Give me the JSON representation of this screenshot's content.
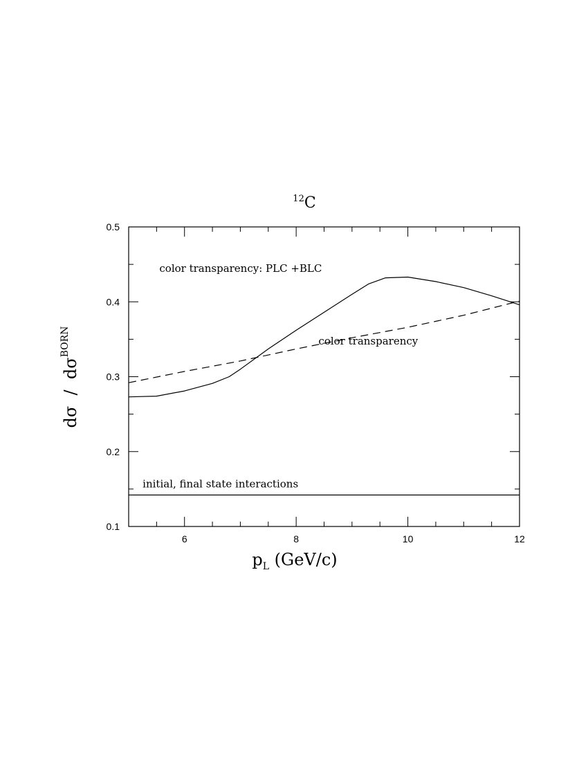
{
  "chart_data": {
    "type": "line",
    "title": {
      "sup": "12",
      "main": "C"
    },
    "xlabel": {
      "main": "p",
      "sub": "L",
      "rest": " (GeV/c)"
    },
    "ylabel": {
      "pre": "dσ  /  dσ",
      "sup": "BORN"
    },
    "xlim": [
      5,
      12
    ],
    "ylim": [
      0.1,
      0.5
    ],
    "xticks": [
      6,
      8,
      10,
      12
    ],
    "xtick_labels": [
      "6",
      "8",
      "10",
      "12"
    ],
    "yticks": [
      0.1,
      0.2,
      0.3,
      0.4,
      0.5
    ],
    "ytick_labels": [
      "0.1",
      "0.2",
      "0.3",
      "0.4",
      "0.5"
    ],
    "grid": false,
    "series": [
      {
        "name": "color transparency: PLC +BLC",
        "style": "solid",
        "color": "#000000",
        "x": [
          5.0,
          5.5,
          6.0,
          6.5,
          6.8,
          7.0,
          7.5,
          8.0,
          8.5,
          9.0,
          9.3,
          9.6,
          10.0,
          10.5,
          11.0,
          11.5,
          12.0
        ],
        "y": [
          0.273,
          0.274,
          0.281,
          0.291,
          0.3,
          0.31,
          0.337,
          0.362,
          0.386,
          0.41,
          0.424,
          0.432,
          0.433,
          0.427,
          0.419,
          0.408,
          0.396
        ]
      },
      {
        "name": "color transparency",
        "style": "dashed",
        "color": "#000000",
        "x": [
          5.0,
          6.0,
          7.0,
          8.0,
          9.0,
          10.0,
          11.0,
          12.0
        ],
        "y": [
          0.292,
          0.307,
          0.321,
          0.337,
          0.352,
          0.366,
          0.382,
          0.401
        ]
      },
      {
        "name": "initial, final state interactions",
        "style": "solid",
        "color": "#000000",
        "x": [
          5.0,
          12.0
        ],
        "y": [
          0.142,
          0.142
        ]
      }
    ],
    "annotations": [
      {
        "text": "color transparency: PLC +BLC",
        "x": 5.55,
        "y": 0.44
      },
      {
        "text": "color transparency",
        "x": 8.4,
        "y": 0.343
      },
      {
        "text": "initial, final state interactions",
        "x": 5.25,
        "y": 0.152
      }
    ]
  }
}
